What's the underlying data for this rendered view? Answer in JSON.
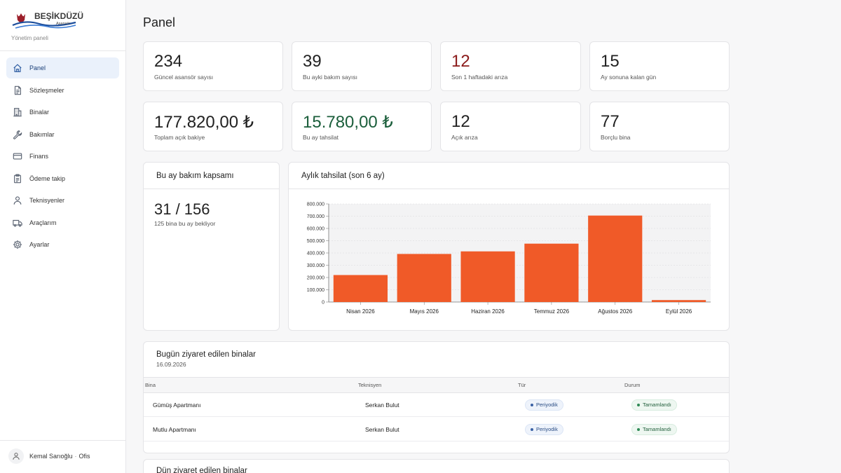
{
  "brand": {
    "name": "BEŞİKDÜZÜ",
    "tag": "Asansör",
    "subtitle": "Yönetim paneli"
  },
  "sidebar": {
    "items": [
      {
        "label": "Panel",
        "icon": "home-icon",
        "active": true
      },
      {
        "label": "Sözleşmeler",
        "icon": "document-icon"
      },
      {
        "label": "Binalar",
        "icon": "building-icon"
      },
      {
        "label": "Bakımlar",
        "icon": "wrench-icon"
      },
      {
        "label": "Finans",
        "icon": "credit-card-icon"
      },
      {
        "label": "Ödeme takip",
        "icon": "clipboard-icon"
      },
      {
        "label": "Teknisyenler",
        "icon": "user-icon"
      },
      {
        "label": "Araçlarım",
        "icon": "truck-icon"
      },
      {
        "label": "Ayarlar",
        "icon": "gear-icon"
      }
    ],
    "user": {
      "name": "Kemal Sarıoğlu",
      "separator": "·",
      "role": "Ofis"
    }
  },
  "page": {
    "title": "Panel"
  },
  "stats": [
    {
      "value": "234",
      "label": "Güncel asansör sayısı",
      "tone": "default"
    },
    {
      "value": "39",
      "label": "Bu ayki bakım sayısı",
      "tone": "default"
    },
    {
      "value": "12",
      "label": "Son 1 haftadaki arıza",
      "tone": "red"
    },
    {
      "value": "15",
      "label": "Ay sonuna kalan gün",
      "tone": "default"
    },
    {
      "value": "177.820,00 ₺",
      "label": "Toplam açık bakiye",
      "tone": "default"
    },
    {
      "value": "15.780,00 ₺",
      "label": "Bu ay tahsilat",
      "tone": "green"
    },
    {
      "value": "12",
      "label": "Açık arıza",
      "tone": "default"
    },
    {
      "value": "77",
      "label": "Borçlu bina",
      "tone": "default"
    }
  ],
  "coverage": {
    "title": "Bu ay bakım kapsamı",
    "value": "31 / 156",
    "note": "125 bina bu ay bekliyor"
  },
  "chart_panel": {
    "title": "Aylık tahsilat (son 6 ay)"
  },
  "chart_data": {
    "type": "bar",
    "categories": [
      "Nisan 2026",
      "Mayıs 2026",
      "Haziran 2026",
      "Temmuz 2026",
      "Ağustos 2026",
      "Eylül 2026"
    ],
    "values": [
      220000,
      392000,
      413000,
      476000,
      705000,
      15780
    ],
    "ylim": [
      0,
      800000
    ],
    "yticks": [
      0,
      100000,
      200000,
      300000,
      400000,
      500000,
      600000,
      700000,
      800000
    ],
    "ytick_labels": [
      "0",
      "100.000",
      "200.000",
      "300.000",
      "400.000",
      "500.000",
      "600.000",
      "700.000",
      "800.000"
    ],
    "grid": true,
    "bar_color": "#f05a28"
  },
  "visits_today": {
    "title": "Bugün ziyaret edilen binalar",
    "date": "16.09.2026",
    "columns": [
      "Bina",
      "Teknisyen",
      "Tür",
      "Durum"
    ],
    "rows": [
      {
        "building": "Gümüş Apartmanı",
        "technician": "Serkan Bulut",
        "type": "Periyodik",
        "status": "Tamamlandı"
      },
      {
        "building": "Mutlu Apartmanı",
        "technician": "Serkan Bulut",
        "type": "Periyodik",
        "status": "Tamamlandı"
      }
    ]
  },
  "visits_yesterday": {
    "title": "Dün ziyaret edilen binalar"
  }
}
